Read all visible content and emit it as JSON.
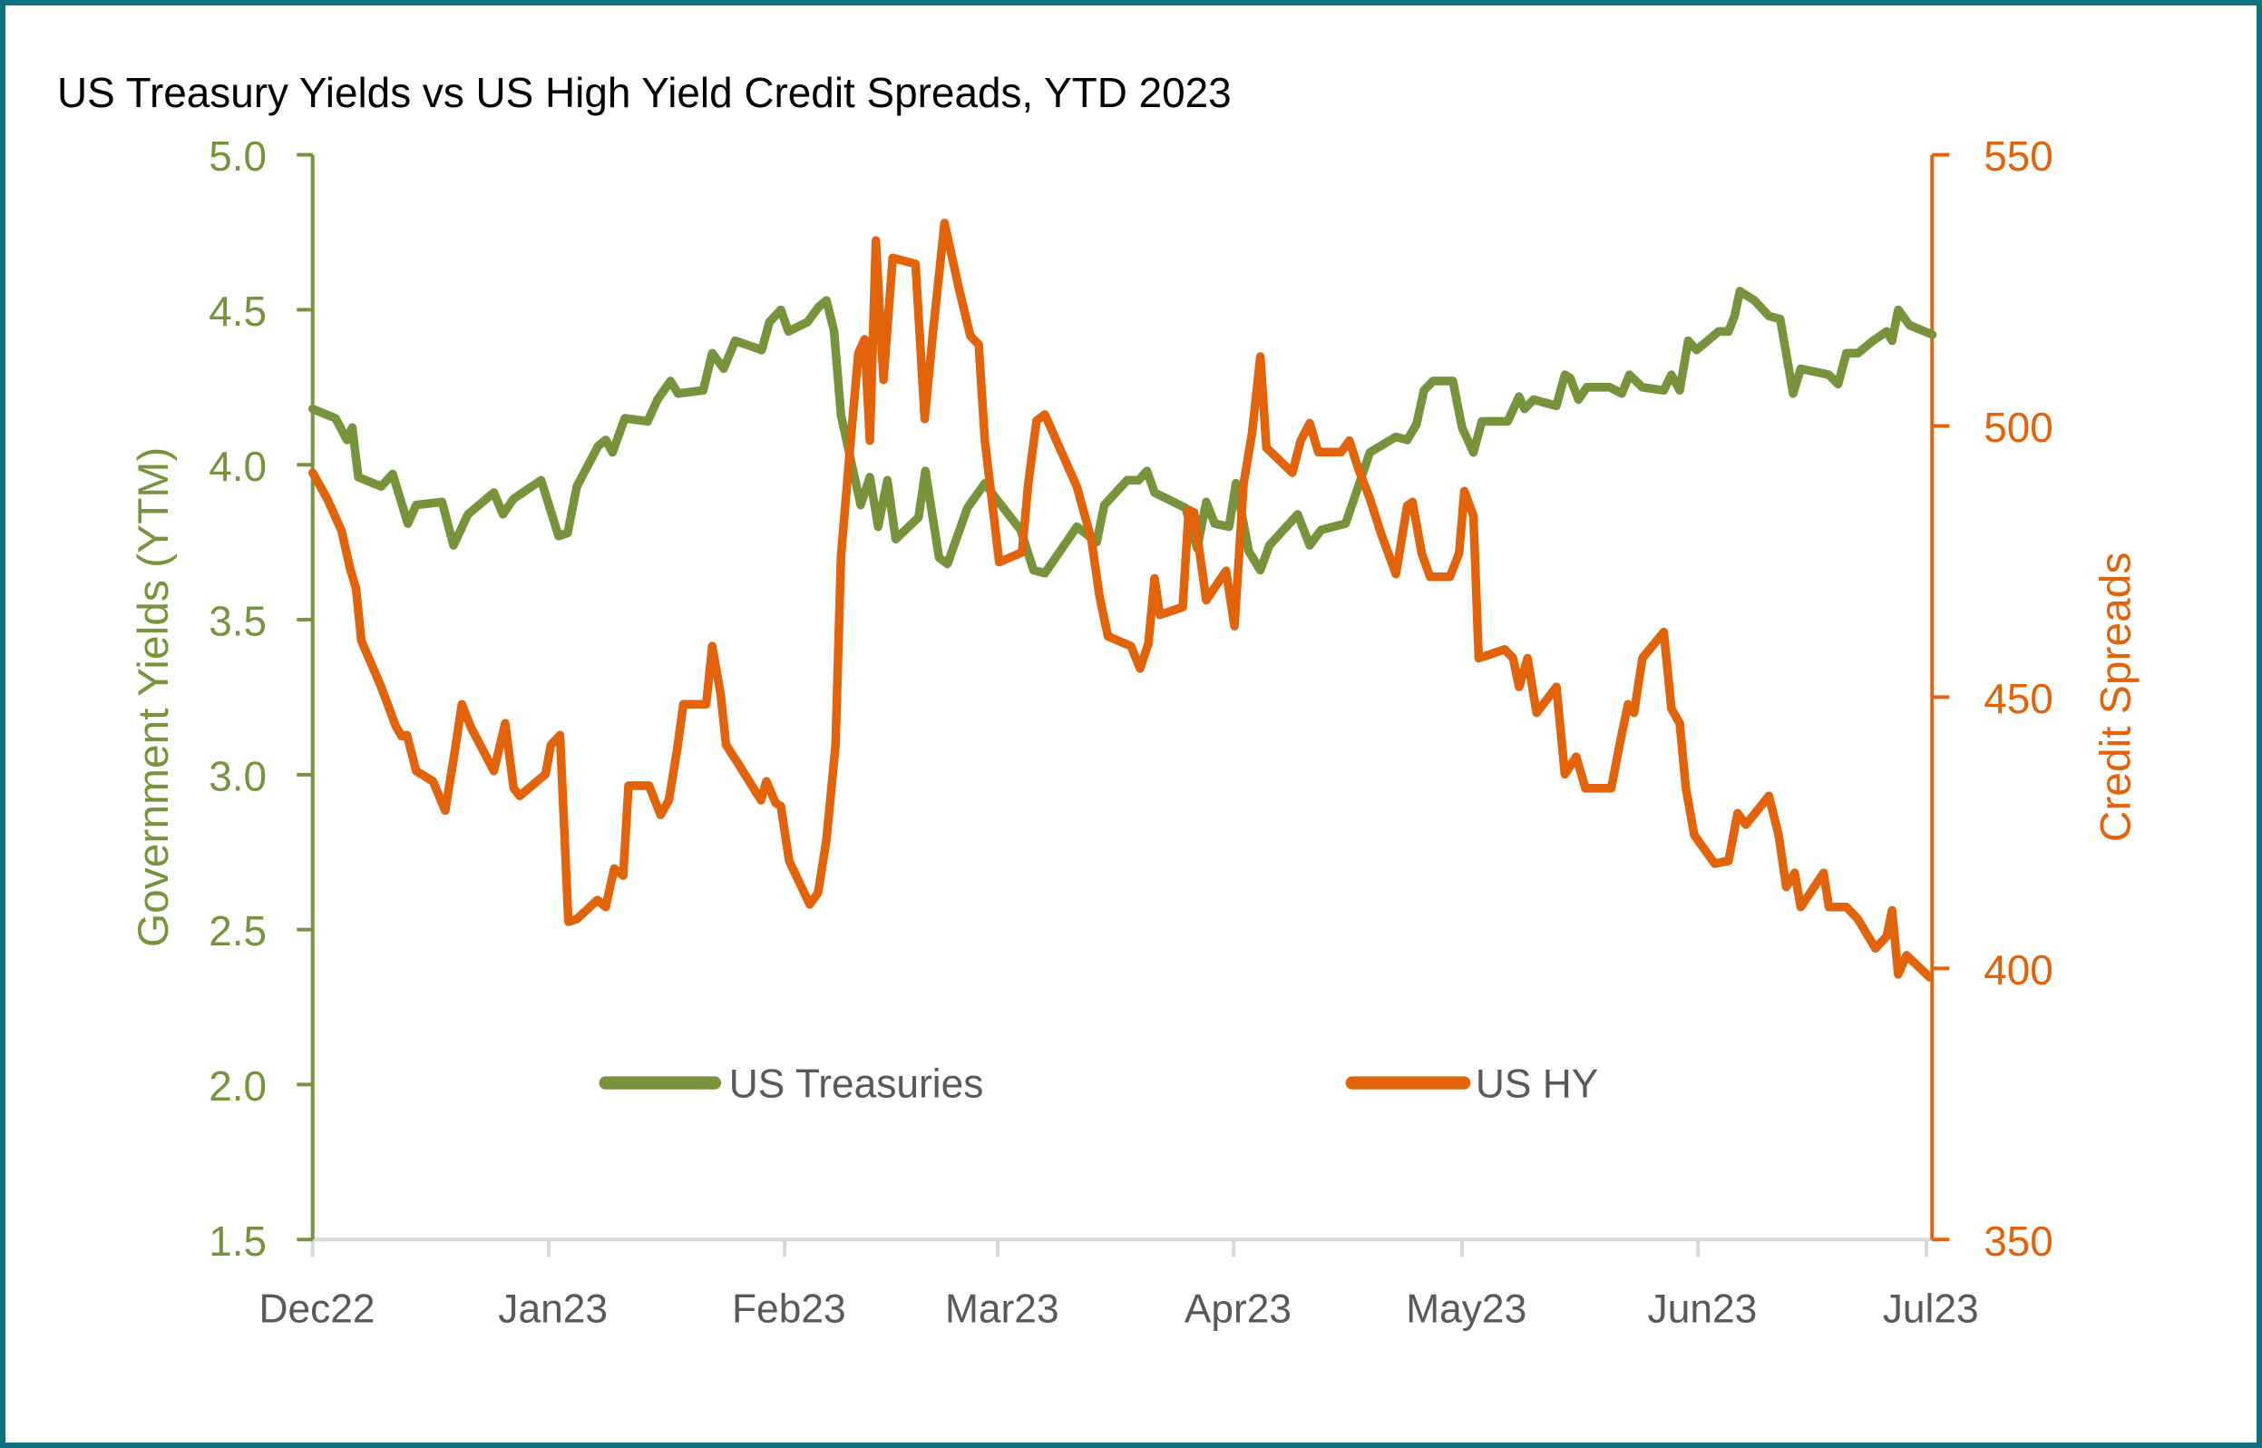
{
  "chart_data": {
    "type": "line",
    "title": "US Treasury Yields vs US High Yield Credit Spreads, YTD 2023",
    "x_unit": "days since 2022-12-01",
    "x_ticks": [
      {
        "day": 0,
        "label": "Dec22"
      },
      {
        "day": 31,
        "label": "Jan23"
      },
      {
        "day": 62,
        "label": "Feb23"
      },
      {
        "day": 90,
        "label": "Mar23"
      },
      {
        "day": 121,
        "label": "Apr23"
      },
      {
        "day": 151,
        "label": "May23"
      },
      {
        "day": 182,
        "label": "Jun23"
      },
      {
        "day": 212,
        "label": "Jul23"
      }
    ],
    "xlim": [
      0,
      212
    ],
    "y_left": {
      "label": "Government Yields (YTM)",
      "lim": [
        1.5,
        5.0
      ],
      "ticks": [
        "1.5",
        "2.0",
        "2.5",
        "3.0",
        "3.5",
        "4.0",
        "4.5",
        "5.0"
      ],
      "color": "#77933c"
    },
    "y_right": {
      "label": "Credit Spreads",
      "lim": [
        350,
        550
      ],
      "ticks": [
        "350",
        "400",
        "450",
        "500",
        "550"
      ],
      "color": "#e26309"
    },
    "legend_placement": "bottom-inside",
    "grid": false,
    "series": [
      {
        "name": "US Treasuries",
        "axis": "left",
        "color": "#77933c",
        "points": [
          [
            0,
            4.18
          ],
          [
            3,
            4.15
          ],
          [
            4.5,
            4.08
          ],
          [
            5.2,
            4.12
          ],
          [
            6,
            3.96
          ],
          [
            9,
            3.93
          ],
          [
            10.5,
            3.97
          ],
          [
            12.5,
            3.81
          ],
          [
            13.6,
            3.87
          ],
          [
            17,
            3.88
          ],
          [
            18.5,
            3.74
          ],
          [
            20.4,
            3.84
          ],
          [
            23.8,
            3.91
          ],
          [
            25,
            3.84
          ],
          [
            26.4,
            3.89
          ],
          [
            30,
            3.95
          ],
          [
            32.3,
            3.77
          ],
          [
            33.5,
            3.78
          ],
          [
            34.7,
            3.93
          ],
          [
            37.5,
            4.06
          ],
          [
            38.5,
            4.08
          ],
          [
            39.4,
            4.04
          ],
          [
            41,
            4.15
          ],
          [
            44,
            4.14
          ],
          [
            45.3,
            4.21
          ],
          [
            47,
            4.27
          ],
          [
            48,
            4.23
          ],
          [
            51.3,
            4.24
          ],
          [
            52.5,
            4.36
          ],
          [
            54,
            4.31
          ],
          [
            55.5,
            4.4
          ],
          [
            59,
            4.37
          ],
          [
            60,
            4.46
          ],
          [
            61.5,
            4.5
          ],
          [
            62.5,
            4.43
          ],
          [
            65,
            4.46
          ],
          [
            66.5,
            4.51
          ],
          [
            67.5,
            4.53
          ],
          [
            68.5,
            4.43
          ],
          [
            69.4,
            4.16
          ],
          [
            72,
            3.87
          ],
          [
            73.2,
            3.96
          ],
          [
            74.3,
            3.8
          ],
          [
            75.5,
            3.95
          ],
          [
            76.6,
            3.76
          ],
          [
            79.6,
            3.83
          ],
          [
            80.5,
            3.98
          ],
          [
            82.3,
            3.7
          ],
          [
            83.4,
            3.68
          ],
          [
            86,
            3.86
          ],
          [
            88.3,
            3.94
          ],
          [
            89.8,
            3.89
          ],
          [
            93,
            3.79
          ],
          [
            94.7,
            3.66
          ],
          [
            96.2,
            3.65
          ],
          [
            100.4,
            3.8
          ],
          [
            103,
            3.75
          ],
          [
            104,
            3.87
          ],
          [
            107,
            3.95
          ],
          [
            108.5,
            3.95
          ],
          [
            109.6,
            3.98
          ],
          [
            110.6,
            3.91
          ],
          [
            114.7,
            3.86
          ],
          [
            116.2,
            3.73
          ],
          [
            117.4,
            3.88
          ],
          [
            118.5,
            3.81
          ],
          [
            120.4,
            3.8
          ],
          [
            121.3,
            3.94
          ],
          [
            123,
            3.72
          ],
          [
            124.5,
            3.66
          ],
          [
            125.7,
            3.74
          ],
          [
            129.4,
            3.84
          ],
          [
            131,
            3.74
          ],
          [
            132.5,
            3.79
          ],
          [
            135.7,
            3.81
          ],
          [
            138.9,
            4.04
          ],
          [
            142.3,
            4.09
          ],
          [
            143.8,
            4.08
          ],
          [
            145,
            4.13
          ],
          [
            146,
            4.24
          ],
          [
            147.2,
            4.27
          ],
          [
            149.8,
            4.27
          ],
          [
            151,
            4.12
          ],
          [
            152.5,
            4.04
          ],
          [
            153.6,
            4.14
          ],
          [
            157,
            4.14
          ],
          [
            158.5,
            4.22
          ],
          [
            159.2,
            4.18
          ],
          [
            160.4,
            4.21
          ],
          [
            163.4,
            4.19
          ],
          [
            164.5,
            4.29
          ],
          [
            165.2,
            4.28
          ],
          [
            166.3,
            4.21
          ],
          [
            167.4,
            4.25
          ],
          [
            170.4,
            4.25
          ],
          [
            172,
            4.23
          ],
          [
            173,
            4.29
          ],
          [
            174.7,
            4.25
          ],
          [
            177.5,
            4.24
          ],
          [
            178.5,
            4.29
          ],
          [
            179.6,
            4.24
          ],
          [
            180.7,
            4.4
          ],
          [
            181.8,
            4.37
          ],
          [
            184.7,
            4.43
          ],
          [
            186,
            4.43
          ],
          [
            186.8,
            4.48
          ],
          [
            187.5,
            4.56
          ],
          [
            189.4,
            4.53
          ],
          [
            191.3,
            4.48
          ],
          [
            192.8,
            4.47
          ],
          [
            194.5,
            4.23
          ],
          [
            195.5,
            4.31
          ],
          [
            199.2,
            4.29
          ],
          [
            200.4,
            4.26
          ],
          [
            201.5,
            4.36
          ],
          [
            203,
            4.36
          ],
          [
            205,
            4.4
          ],
          [
            206.8,
            4.43
          ],
          [
            207.5,
            4.4
          ],
          [
            208.3,
            4.5
          ],
          [
            209.8,
            4.45
          ],
          [
            212.8,
            4.42
          ]
        ]
      },
      {
        "name": "US HY",
        "axis": "right",
        "color": "#e26309",
        "points": [
          [
            0,
            491.4
          ],
          [
            1.9,
            486.6
          ],
          [
            3.8,
            480.7
          ],
          [
            4.9,
            473.8
          ],
          [
            5.7,
            470
          ],
          [
            6.4,
            460.4
          ],
          [
            9,
            451.9
          ],
          [
            10.9,
            444.7
          ],
          [
            11.7,
            442.8
          ],
          [
            12.4,
            443
          ],
          [
            13.6,
            436.4
          ],
          [
            15.8,
            434.5
          ],
          [
            17.4,
            429.1
          ],
          [
            18.5,
            438.5
          ],
          [
            19.6,
            448.7
          ],
          [
            20.8,
            444.4
          ],
          [
            23.8,
            436.4
          ],
          [
            25.3,
            445.2
          ],
          [
            26.4,
            433.2
          ],
          [
            27.2,
            431.8
          ],
          [
            30.6,
            435.8
          ],
          [
            31.3,
            441.2
          ],
          [
            32.5,
            443
          ],
          [
            33.6,
            408.6
          ],
          [
            34.7,
            409.1
          ],
          [
            37.4,
            412.6
          ],
          [
            38.5,
            411.3
          ],
          [
            39.6,
            418.4
          ],
          [
            40.8,
            417.1
          ],
          [
            41.5,
            433.7
          ],
          [
            44.2,
            433.7
          ],
          [
            45.7,
            428.3
          ],
          [
            46.8,
            431
          ],
          [
            47.9,
            440.6
          ],
          [
            48.7,
            448.7
          ],
          [
            51.7,
            448.7
          ],
          [
            52.5,
            459.4
          ],
          [
            53.6,
            450.5
          ],
          [
            54.3,
            441.2
          ],
          [
            55.8,
            438
          ],
          [
            58.9,
            431
          ],
          [
            59.6,
            434.5
          ],
          [
            60.8,
            430.5
          ],
          [
            61.5,
            429.9
          ],
          [
            62.6,
            419.8
          ],
          [
            65.3,
            411.8
          ],
          [
            66.4,
            413.9
          ],
          [
            67.5,
            423.8
          ],
          [
            68.7,
            441.2
          ],
          [
            69.4,
            475.9
          ],
          [
            70.6,
            496
          ],
          [
            71.7,
            513.4
          ],
          [
            72.5,
            516
          ],
          [
            73.2,
            497.3
          ],
          [
            74,
            534.2
          ],
          [
            75,
            508.5
          ],
          [
            76.2,
            531
          ],
          [
            79.2,
            529.9
          ],
          [
            80.4,
            501.3
          ],
          [
            81.5,
            517.4
          ],
          [
            83,
            537.4
          ],
          [
            84.9,
            525.4
          ],
          [
            86.4,
            516.6
          ],
          [
            87.5,
            515
          ],
          [
            88.3,
            497.3
          ],
          [
            90.2,
            474.9
          ],
          [
            93.2,
            476.7
          ],
          [
            94,
            489.3
          ],
          [
            95.1,
            501
          ],
          [
            96.2,
            502.1
          ],
          [
            100.4,
            488.8
          ],
          [
            102.3,
            479.1
          ],
          [
            103.4,
            468.4
          ],
          [
            104.5,
            461.2
          ],
          [
            107.5,
            459.4
          ],
          [
            108.7,
            455.3
          ],
          [
            109.8,
            459.9
          ],
          [
            110.6,
            471.9
          ],
          [
            111.3,
            465.2
          ],
          [
            114.3,
            466.6
          ],
          [
            115.1,
            484.5
          ],
          [
            115.8,
            484
          ],
          [
            117.4,
            467.9
          ],
          [
            120,
            473.3
          ],
          [
            121.1,
            463.1
          ],
          [
            122.3,
            489.3
          ],
          [
            123.4,
            498.7
          ],
          [
            124.5,
            512.8
          ],
          [
            125.3,
            496
          ],
          [
            128.7,
            491.4
          ],
          [
            129.8,
            497.3
          ],
          [
            131,
            500.5
          ],
          [
            132.1,
            495.2
          ],
          [
            135.1,
            495.2
          ],
          [
            136.2,
            497.3
          ],
          [
            137.4,
            492
          ],
          [
            138.9,
            486.6
          ],
          [
            140.4,
            480
          ],
          [
            142.3,
            472.7
          ],
          [
            143.8,
            485.3
          ],
          [
            144.5,
            486
          ],
          [
            145.7,
            476.5
          ],
          [
            146.8,
            472.2
          ],
          [
            149.4,
            472.2
          ],
          [
            150.6,
            476.5
          ],
          [
            151.3,
            488
          ],
          [
            152.5,
            483.4
          ],
          [
            153.2,
            457.2
          ],
          [
            156.6,
            458.8
          ],
          [
            157.7,
            457.2
          ],
          [
            158.5,
            451.9
          ],
          [
            159.6,
            457.2
          ],
          [
            160.8,
            447.1
          ],
          [
            163.4,
            451.9
          ],
          [
            164.5,
            435.8
          ],
          [
            166,
            439
          ],
          [
            167.2,
            433.2
          ],
          [
            170.6,
            433.2
          ],
          [
            171.7,
            441.2
          ],
          [
            172.8,
            448.7
          ],
          [
            173.6,
            447.1
          ],
          [
            174.7,
            457.2
          ],
          [
            177.5,
            462
          ],
          [
            178.5,
            447.9
          ],
          [
            179.6,
            445.2
          ],
          [
            180.4,
            433.2
          ],
          [
            181.5,
            424.6
          ],
          [
            184.2,
            419.3
          ],
          [
            186,
            419.8
          ],
          [
            187.2,
            428.6
          ],
          [
            188.3,
            426.5
          ],
          [
            191.3,
            431.8
          ],
          [
            192.6,
            424.6
          ],
          [
            193.6,
            415
          ],
          [
            194.7,
            417.6
          ],
          [
            195.5,
            411.3
          ],
          [
            198.5,
            417.6
          ],
          [
            199.2,
            411.3
          ],
          [
            201.5,
            411.3
          ],
          [
            203,
            409.1
          ],
          [
            205.3,
            403.7
          ],
          [
            206.8,
            405.9
          ],
          [
            207.5,
            410.7
          ],
          [
            208.3,
            398.9
          ],
          [
            209.4,
            402.4
          ],
          [
            212.4,
            398.4
          ]
        ]
      }
    ]
  }
}
